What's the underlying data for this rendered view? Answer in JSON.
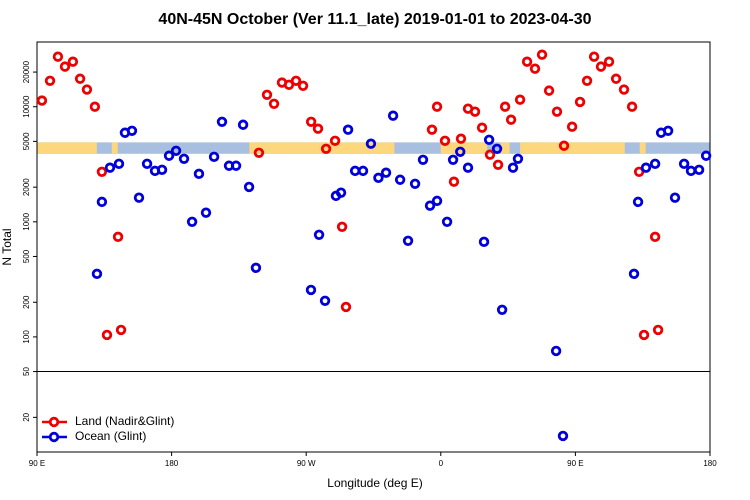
{
  "chart_data": {
    "type": "scatter",
    "title": "40N-45N October (Ver 11.1_late)   2019-01-01 to 2023-04-30",
    "xlabel": "Longitude (deg E)",
    "ylabel": "N Total",
    "xlim": [
      90,
      540
    ],
    "xticks": [
      {
        "value": 90,
        "label": "90 E"
      },
      {
        "value": 180,
        "label": "180"
      },
      {
        "value": 270,
        "label": "90 W"
      },
      {
        "value": 360,
        "label": "0"
      },
      {
        "value": 450,
        "label": "90 E"
      },
      {
        "value": 540,
        "label": "180"
      }
    ],
    "ylim": [
      10,
      36500
    ],
    "log_y": true,
    "yticks": [
      20,
      50,
      100,
      200,
      500,
      1000,
      2000,
      5000,
      10000,
      20000
    ],
    "hline": 50,
    "legend": "lower left",
    "surface_band": {
      "ylim": [
        3900,
        4900
      ],
      "ocean_color": "#a9bfe0",
      "land_color": "#fcd77e",
      "land_segments": [
        [
          90,
          130
        ],
        [
          140,
          144
        ],
        [
          232,
          329
        ],
        [
          360,
          391
        ],
        [
          400,
          406
        ],
        [
          413,
          483
        ],
        [
          493,
          497
        ]
      ]
    },
    "series": [
      {
        "name": "Land (Nadir&Glint)",
        "color": "#ee0000",
        "x": [
          93.3,
          98.7,
          104,
          108.7,
          114,
          118.8,
          123.4,
          128.7,
          133.4,
          136.8,
          144.2,
          146.2,
          238.4,
          243.8,
          248.5,
          253.8,
          258.5,
          263.2,
          267.9,
          273.3,
          277.9,
          283.3,
          289.3,
          294,
          296.6,
          354.1,
          357.5,
          362.8,
          368.8,
          373.5,
          378.2,
          382.9,
          387.6,
          392.9,
          398.3,
          403,
          407,
          413,
          417.7,
          423,
          427.7,
          432.4,
          437.7,
          442.4,
          447.8,
          453.1,
          457.8,
          462.5,
          467.1,
          472.5,
          477.2,
          482.5,
          487.9,
          492.6,
          495.9,
          503.3,
          505.3
        ],
        "values": [
          11300,
          16800,
          27200,
          22300,
          24600,
          17500,
          14100,
          10000,
          2720,
          104,
          740,
          115,
          3980,
          12700,
          10600,
          16200,
          15500,
          16800,
          15200,
          7400,
          6440,
          4310,
          5060,
          905,
          182,
          6310,
          10000,
          5060,
          2230,
          5270,
          9610,
          9060,
          6570,
          3830,
          3130,
          10000,
          7710,
          11500,
          24600,
          21400,
          28300,
          13800,
          9060,
          4580,
          6700,
          11000,
          16800,
          27200,
          22300,
          24600,
          17500,
          14100,
          10000,
          2720,
          104,
          740,
          115
        ]
      },
      {
        "name": "Ocean (Glint)",
        "color": "#0000dd",
        "x": [
          130.1,
          133.4,
          138.8,
          144.8,
          148.8,
          153.5,
          158.2,
          163.6,
          168.9,
          173.6,
          178.3,
          183,
          188.3,
          193.7,
          198.3,
          203,
          208.4,
          213.7,
          218.4,
          223.1,
          227.8,
          231.8,
          236.4,
          273.2,
          278.6,
          282.6,
          289.9,
          293.3,
          298,
          302.7,
          308,
          313.3,
          318.3,
          323.4,
          328.1,
          332.8,
          338.1,
          342.8,
          348.1,
          352.8,
          357.5,
          364.2,
          368.2,
          373,
          378.2,
          388.9,
          392.3,
          397.6,
          401,
          408.3,
          411.6,
          437.1,
          441.7,
          489.2,
          491.9,
          497.2,
          503.3,
          507.3,
          512,
          516.6,
          522.7,
          527.3,
          532.7,
          537.4
        ],
        "values": [
          353,
          1490,
          2950,
          3190,
          5940,
          6180,
          1620,
          3190,
          2770,
          2830,
          3750,
          4140,
          3530,
          1000,
          2610,
          1200,
          3670,
          7400,
          3070,
          3070,
          6970,
          2010,
          398,
          256,
          771,
          206,
          1680,
          1790,
          6310,
          2770,
          2770,
          4770,
          2410,
          2670,
          8350,
          2320,
          684,
          2140,
          3460,
          1380,
          1520,
          1000,
          3460,
          4060,
          2950,
          670,
          5160,
          4310,
          172,
          2950,
          3530,
          75.5,
          13.8,
          353,
          1490,
          2950,
          3190,
          5940,
          6180,
          1620,
          3190,
          2770,
          2830,
          3750
        ]
      }
    ]
  }
}
